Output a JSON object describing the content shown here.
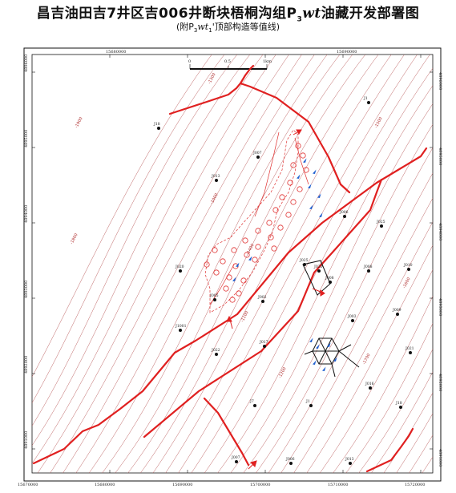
{
  "title_main": "昌吉油田吉7井区吉006井断块梧桐沟组",
  "title_formula": "P",
  "title_sub3": "3",
  "title_wt": "wt",
  "title_end": "油藏开发部署图",
  "subtitle_pre": "(附P",
  "subtitle_sub3": "3",
  "subtitle_wt": "wt",
  "subtitle_sub1": "1",
  "subtitle_post": "'顶部构造等值线)",
  "scale": {
    "zero": "0",
    "mid": "0.5",
    "end": "1km"
  },
  "coords_top": [
    "15680000",
    "15690000"
  ],
  "coords_bottom": [
    "15670000",
    "15680000",
    "15690000",
    "15700000",
    "15710000",
    "15720000"
  ],
  "coords_left": [
    "4896000",
    "4895000",
    "4894000",
    "4893000",
    "4892000",
    "4891000"
  ],
  "contour_labels": [
    "-1000",
    "-1100",
    "-1200",
    "-1300",
    "-1400",
    "-1500",
    "-1600",
    "-1700",
    "-1800",
    "-1900"
  ],
  "wells": [
    {
      "name": "J1"
    },
    {
      "name": "J18"
    },
    {
      "name": "J007"
    },
    {
      "name": "J013"
    },
    {
      "name": "J006"
    },
    {
      "name": "J025"
    },
    {
      "name": "J020"
    },
    {
      "name": "J008"
    },
    {
      "name": "J010"
    },
    {
      "name": "J002"
    },
    {
      "name": "J005"
    },
    {
      "name": "J009"
    },
    {
      "name": "J003"
    },
    {
      "name": "J1001"
    },
    {
      "name": "J017"
    },
    {
      "name": "J021"
    },
    {
      "name": "J022"
    },
    {
      "name": "J016"
    },
    {
      "name": "J7"
    }
  ]
}
